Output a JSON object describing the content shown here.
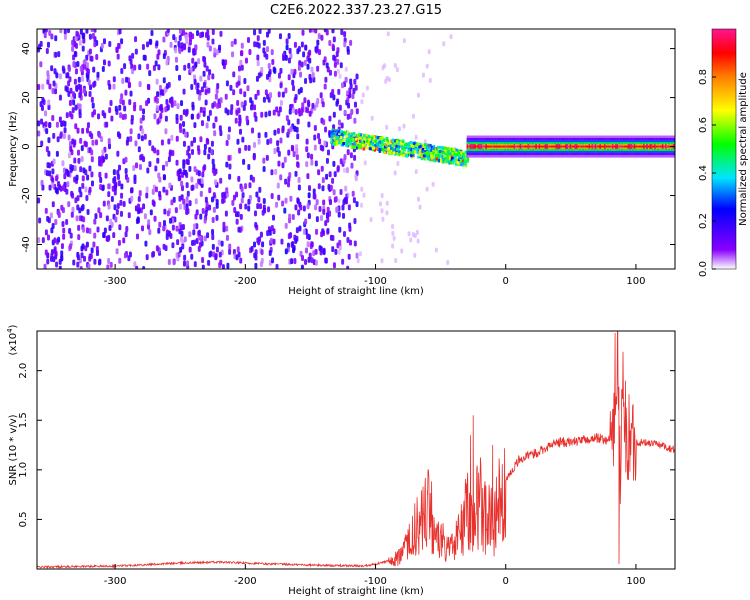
{
  "title": "C2E6.2022.337.23.27.G15",
  "chart_data": [
    {
      "type": "heatmap",
      "xlabel": "Height of straight line (km)",
      "ylabel": "Frequency (Hz)",
      "xlim": [
        -360,
        130
      ],
      "ylim": [
        -50,
        48
      ],
      "xticks": [
        -300,
        -200,
        -100,
        0,
        100
      ],
      "yticks": [
        -40,
        -20,
        0,
        20,
        40
      ],
      "colorbar": {
        "label": "Normalized spectral amplitude",
        "range": [
          0.0,
          1.0
        ],
        "ticks": [
          0.0,
          0.2,
          0.4,
          0.6,
          0.8
        ],
        "colormap": [
          "#ffffff",
          "#8a00ff",
          "#0000ff",
          "#00e5ff",
          "#00ff00",
          "#ffff00",
          "#ff7f00",
          "#ff0000",
          "#ff1493"
        ]
      },
      "description_regions": [
        {
          "x_from": -360,
          "x_to": -120,
          "y_from": -50,
          "y_to": 48,
          "amplitude": [
            0.05,
            0.25
          ]
        },
        {
          "x_from": -120,
          "x_to": -30,
          "y_center": 4,
          "y_center_end": -5,
          "amplitude": [
            0.3,
            0.7
          ]
        },
        {
          "x_from": -30,
          "x_to": 130,
          "y_center": 0,
          "amplitude": [
            0.6,
            1.0
          ]
        }
      ]
    },
    {
      "type": "line",
      "xlabel": "Height of straight line (km)",
      "ylabel": "SNR (10 * v/v)",
      "y_multiplier_label": "(x10",
      "y_multiplier_exp": "4",
      "y_multiplier_close": ")",
      "xlim": [
        -360,
        130
      ],
      "ylim": [
        0,
        2.4
      ],
      "xticks": [
        -300,
        -200,
        -100,
        0,
        100
      ],
      "yticks": [
        0.5,
        1.0,
        1.5,
        2.0
      ],
      "ytick_labels": [
        "0.5",
        "1.0",
        "1.5",
        "2.0"
      ],
      "color": "#e8302c",
      "series": [
        {
          "x": [
            -360,
            -300,
            -250,
            -220,
            -180,
            -150,
            -110,
            -100,
            -90,
            -80,
            -75,
            -70,
            -65,
            -60,
            -55,
            -50,
            -45,
            -40,
            -35,
            -30,
            -25,
            -20,
            -15,
            -10,
            -5,
            0,
            5,
            10,
            20,
            30,
            40,
            50,
            60,
            70,
            80,
            84,
            86,
            88,
            90,
            92,
            95,
            100,
            110,
            120,
            130
          ],
          "y": [
            0.02,
            0.03,
            0.06,
            0.07,
            0.05,
            0.04,
            0.03,
            0.05,
            0.08,
            0.15,
            0.3,
            0.45,
            0.6,
            0.7,
            0.55,
            0.35,
            0.25,
            0.3,
            0.5,
            0.7,
            0.6,
            0.8,
            0.7,
            0.55,
            0.75,
            0.9,
            1.0,
            1.1,
            1.15,
            1.22,
            1.28,
            1.28,
            1.3,
            1.32,
            1.3,
            1.5,
            2.3,
            0.9,
            1.9,
            1.2,
            1.35,
            1.28,
            1.27,
            1.25,
            1.2
          ]
        }
      ],
      "spikes": [
        {
          "x": 84,
          "y": 2.38
        },
        {
          "x": 87,
          "y": 0.05
        },
        {
          "x": 92,
          "y": 1.9
        },
        {
          "x": -25,
          "y": 1.55
        },
        {
          "x": -27,
          "y": 1.35
        },
        {
          "x": -10,
          "y": 1.25
        },
        {
          "x": -60,
          "y": 0.75
        }
      ]
    }
  ]
}
